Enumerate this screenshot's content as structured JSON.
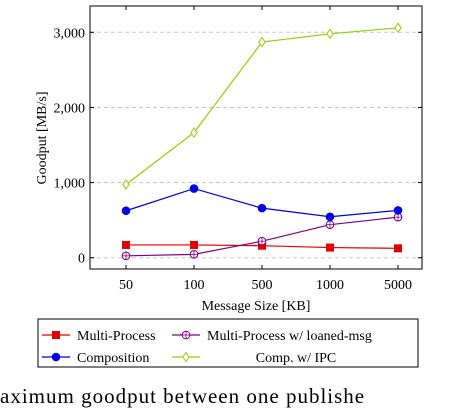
{
  "chart_data": {
    "type": "line",
    "categories": [
      "50",
      "100",
      "500",
      "1000",
      "5000"
    ],
    "xlabel": "Message Size [KB]",
    "ylabel": "Goodput [MB/s]",
    "ylim": [
      -150,
      3350
    ],
    "yticks": [
      0,
      1000,
      2000,
      3000
    ],
    "ytick_labels": [
      "0",
      "1,000",
      "2,000",
      "3,000"
    ],
    "grid": "horizontal dashed",
    "legend_position": "below plot, two columns",
    "series": [
      {
        "name": "Multi-Process",
        "color": "#e00000",
        "marker": "square",
        "values": [
          170,
          170,
          160,
          135,
          125
        ]
      },
      {
        "name": "Multi-Process w/ loaned-msg",
        "color": "#800080",
        "marker": "circle-open",
        "values": [
          25,
          45,
          220,
          440,
          540
        ]
      },
      {
        "name": "Composition",
        "color": "#0000e0",
        "marker": "circle",
        "values": [
          625,
          920,
          660,
          545,
          630
        ]
      },
      {
        "name": "Comp. w/ IPC",
        "color": "#99cc00",
        "marker": "diamond",
        "values": [
          975,
          1665,
          2870,
          2980,
          3060
        ]
      }
    ]
  },
  "caption": "aximum  goodput  between  one  publishe"
}
